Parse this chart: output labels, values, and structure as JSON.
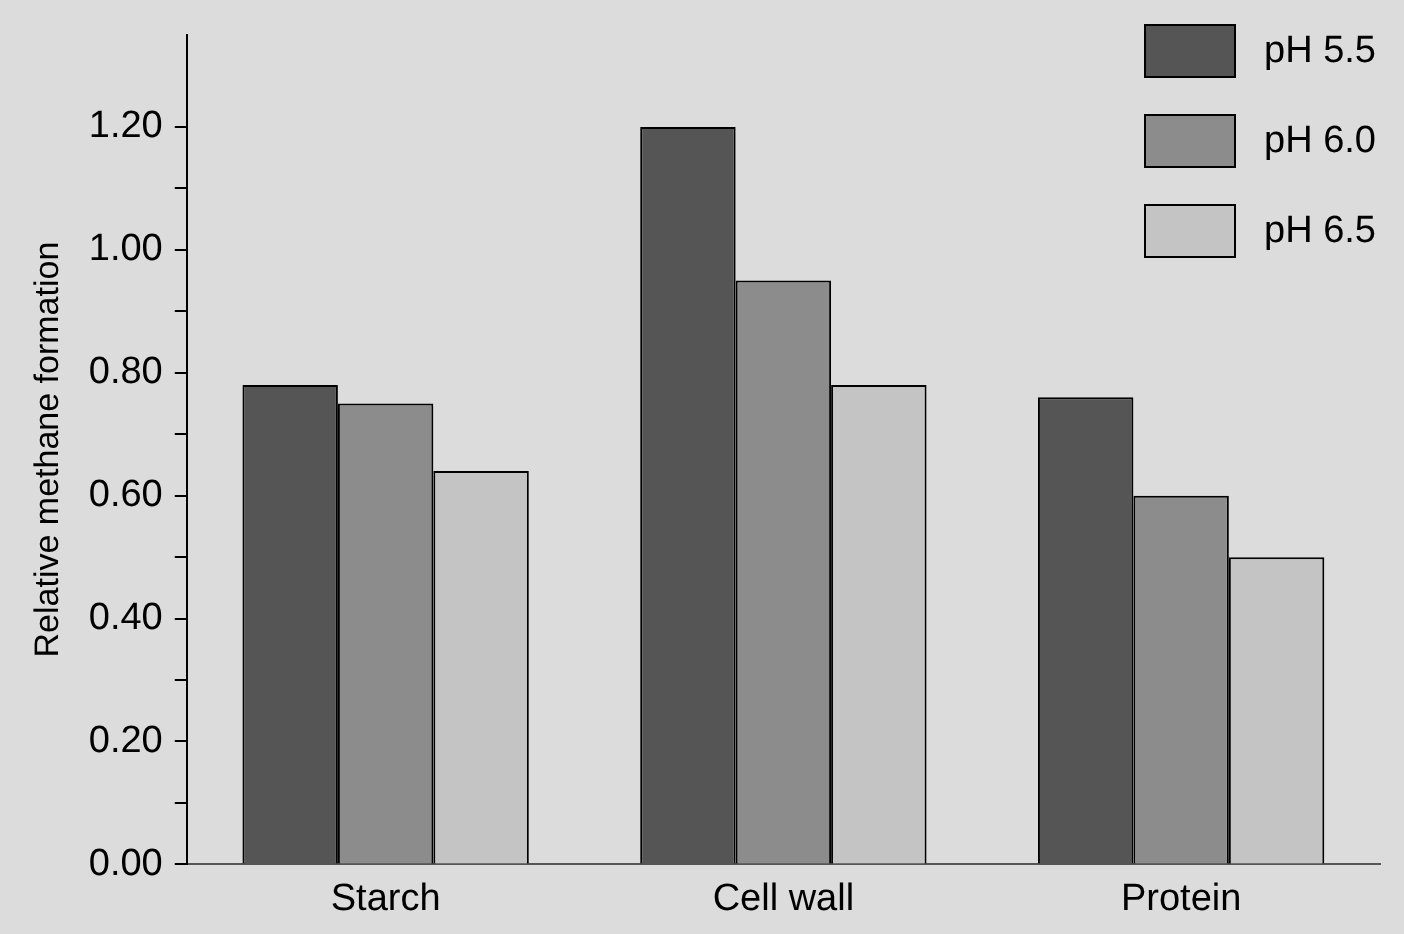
{
  "chart_data": {
    "type": "bar",
    "ylabel": "Relative methane formation",
    "categories": [
      "Starch",
      "Cell wall",
      "Protein"
    ],
    "series": [
      {
        "name": "pH 5.5",
        "color": "#555555",
        "values": [
          0.78,
          1.2,
          0.76
        ]
      },
      {
        "name": "pH 6.0",
        "color": "#8c8c8c",
        "values": [
          0.75,
          0.95,
          0.6
        ]
      },
      {
        "name": "pH 6.5",
        "color": "#c4c4c4",
        "values": [
          0.64,
          0.78,
          0.5
        ]
      }
    ],
    "ylim": [
      0,
      1.35
    ],
    "yticks": [
      {
        "value": 0,
        "label": "0.00"
      },
      {
        "value": 0.1,
        "label": null
      },
      {
        "value": 0.2,
        "label": "0.20"
      },
      {
        "value": 0.3,
        "label": null
      },
      {
        "value": 0.4,
        "label": "0.40"
      },
      {
        "value": 0.5,
        "label": null
      },
      {
        "value": 0.6,
        "label": "0.60"
      },
      {
        "value": 0.7,
        "label": null
      },
      {
        "value": 0.8,
        "label": "0.80"
      },
      {
        "value": 0.9,
        "label": null
      },
      {
        "value": 1.0,
        "label": "1.00"
      },
      {
        "value": 1.1,
        "label": null
      },
      {
        "value": 1.2,
        "label": "1.20"
      }
    ],
    "grid": false,
    "legend": "top right"
  }
}
